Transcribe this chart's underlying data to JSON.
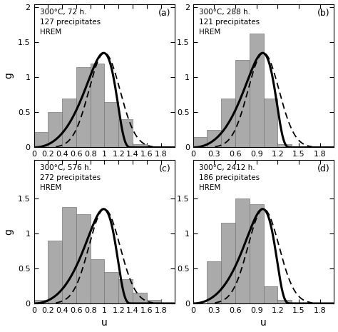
{
  "subplots": [
    {
      "label": "(a)",
      "title_text": "300°C, 72 h.\n127 precipitates\nHREM",
      "xlim": [
        0,
        2.0
      ],
      "ylim": [
        0,
        2.05
      ],
      "xticks": [
        0,
        0.2,
        0.4,
        0.6,
        0.8,
        1.0,
        1.2,
        1.4,
        1.6,
        1.8
      ],
      "xtick_labels": [
        "0",
        "0.2",
        "0.4",
        "0.6",
        "0.8",
        "1",
        "1.2",
        "1.4",
        "1.6",
        "1.8"
      ],
      "bar_centers": [
        0.1,
        0.3,
        0.5,
        0.7,
        0.9,
        1.1,
        1.3,
        1.5,
        1.7,
        1.9
      ],
      "bar_heights": [
        0.22,
        0.5,
        0.7,
        1.15,
        1.2,
        0.65,
        0.4,
        0.05,
        0.0,
        0.0
      ],
      "lsw_peak_u": 0.9,
      "lsw_scale": 1.35,
      "dashed_peak_u": 1.0,
      "dashed_scale": 1.35
    },
    {
      "label": "(b)",
      "title_text": "300°C, 288 h.\n121 precipitates\nHREM",
      "xlim": [
        0,
        2.0
      ],
      "ylim": [
        0,
        2.05
      ],
      "xticks": [
        0,
        0.3,
        0.6,
        0.9,
        1.2,
        1.5,
        1.8
      ],
      "xtick_labels": [
        "0",
        "0.3",
        "0.6",
        "0.9",
        "1.2",
        "1.5",
        "1.8"
      ],
      "bar_centers": [
        0.1,
        0.3,
        0.5,
        0.7,
        0.9,
        1.1,
        1.3,
        1.5,
        1.7,
        1.9
      ],
      "bar_heights": [
        0.15,
        0.25,
        0.7,
        1.25,
        1.63,
        0.7,
        0.05,
        0.0,
        0.0,
        0.0
      ],
      "lsw_peak_u": 0.9,
      "lsw_scale": 1.35,
      "dashed_peak_u": 1.0,
      "dashed_scale": 1.35
    },
    {
      "label": "(c)",
      "title_text": "300°C, 576 h.\n272 precipitates\nHREM",
      "xlim": [
        0,
        2.0
      ],
      "ylim": [
        0,
        2.05
      ],
      "xticks": [
        0,
        0.2,
        0.4,
        0.6,
        0.8,
        1.0,
        1.2,
        1.4,
        1.6,
        1.8
      ],
      "xtick_labels": [
        "0",
        "0.2",
        "0.4",
        "0.6",
        "0.8",
        "1",
        "1.2",
        "1.4",
        "1.6",
        "1.8"
      ],
      "bar_centers": [
        0.1,
        0.3,
        0.5,
        0.7,
        0.9,
        1.1,
        1.3,
        1.5,
        1.7,
        1.9
      ],
      "bar_heights": [
        0.05,
        0.9,
        1.38,
        1.28,
        0.63,
        0.45,
        0.35,
        0.15,
        0.05,
        0.0
      ],
      "lsw_peak_u": 0.9,
      "lsw_scale": 1.35,
      "dashed_peak_u": 1.0,
      "dashed_scale": 1.35
    },
    {
      "label": "(d)",
      "title_text": "300°C, 2412 h.\n186 precipitates\nHREM",
      "xlim": [
        0,
        2.0
      ],
      "ylim": [
        0,
        2.05
      ],
      "xticks": [
        0,
        0.3,
        0.6,
        0.9,
        1.2,
        1.5,
        1.8
      ],
      "xtick_labels": [
        "0",
        "0.3",
        "0.6",
        "0.9",
        "1.2",
        "1.5",
        "1.8"
      ],
      "bar_centers": [
        0.1,
        0.3,
        0.5,
        0.7,
        0.9,
        1.1,
        1.3,
        1.5,
        1.7,
        1.9
      ],
      "bar_heights": [
        0.0,
        0.6,
        1.15,
        1.5,
        1.42,
        0.25,
        0.05,
        0.0,
        0.0,
        0.0
      ],
      "lsw_peak_u": 0.9,
      "lsw_scale": 1.35,
      "dashed_peak_u": 1.0,
      "dashed_scale": 1.35
    }
  ],
  "bar_width": 0.2,
  "bar_color": "#aaaaaa",
  "bar_edgecolor": "#777777",
  "solid_color": "black",
  "dashed_color": "black",
  "yticks_top": [
    0,
    0.5,
    1.0,
    1.5,
    2.0
  ],
  "ytick_labels_top": [
    "0",
    "0.5",
    "1",
    "1.5",
    "2"
  ],
  "yticks_bottom": [
    0,
    0.5,
    1.0,
    1.5
  ],
  "ytick_labels_bottom": [
    "0",
    "0.5",
    "1",
    "1.5"
  ],
  "xlabel": "u",
  "ylabel": "g",
  "background_color": "#ffffff"
}
